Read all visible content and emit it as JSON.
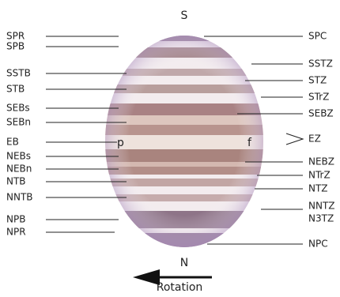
{
  "top_label": "S",
  "bottom_label": "N",
  "rotation_label": "Rotation",
  "preceding_label": "p",
  "following_label": "f",
  "left_labels": [
    "SPR",
    "SPB",
    "SSTB",
    "STB",
    "SEBs",
    "SEBn",
    "EB",
    "NEBs",
    "NEBn",
    "NTB",
    "NNTB",
    "NPB",
    "NPR"
  ],
  "right_labels": [
    "SPC",
    "SSTZ",
    "STZ",
    "STrZ",
    "SEBZ",
    "EZ",
    "NEBZ",
    "NTrZ",
    "NTZ",
    "NNTZ",
    "N3TZ",
    "NPC"
  ]
}
